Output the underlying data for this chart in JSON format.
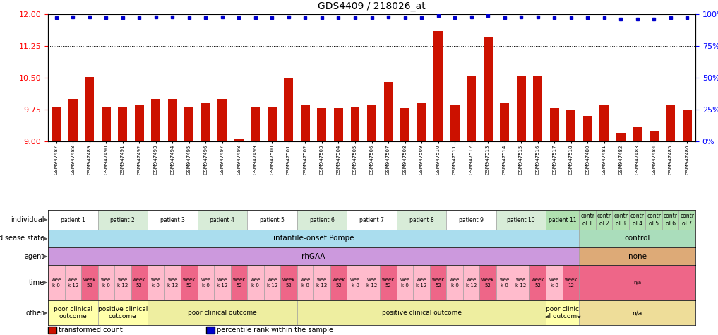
{
  "title": "GDS4409 / 218026_at",
  "sample_ids": [
    "GSM947487",
    "GSM947488",
    "GSM947489",
    "GSM947490",
    "GSM947491",
    "GSM947492",
    "GSM947493",
    "GSM947494",
    "GSM947495",
    "GSM947496",
    "GSM947497",
    "GSM947498",
    "GSM947499",
    "GSM947500",
    "GSM947501",
    "GSM947502",
    "GSM947503",
    "GSM947504",
    "GSM947505",
    "GSM947506",
    "GSM947507",
    "GSM947508",
    "GSM947509",
    "GSM947510",
    "GSM947511",
    "GSM947512",
    "GSM947513",
    "GSM947514",
    "GSM947515",
    "GSM947516",
    "GSM947517",
    "GSM947518",
    "GSM947480",
    "GSM947481",
    "GSM947482",
    "GSM947483",
    "GSM947484",
    "GSM947485",
    "GSM947486"
  ],
  "bar_values": [
    9.8,
    10.0,
    10.52,
    9.82,
    9.82,
    9.85,
    10.0,
    10.0,
    9.82,
    9.9,
    10.0,
    9.05,
    9.82,
    9.82,
    10.5,
    9.85,
    9.78,
    9.78,
    9.82,
    9.85,
    10.4,
    9.78,
    9.9,
    11.6,
    9.85,
    10.55,
    11.45,
    9.9,
    10.55,
    10.55,
    9.78,
    9.75,
    9.6,
    9.85,
    9.2,
    9.35,
    9.25,
    9.85,
    9.75
  ],
  "percentile_values": [
    97,
    98,
    98,
    97,
    97,
    97,
    98,
    98,
    97,
    97,
    98,
    97,
    97,
    97,
    98,
    97,
    97,
    97,
    97,
    97,
    98,
    97,
    97,
    99,
    97,
    98,
    99,
    97,
    98,
    98,
    97,
    97,
    97,
    97,
    96,
    96,
    96,
    97,
    97
  ],
  "ylim_left": [
    9.0,
    12.0
  ],
  "ylim_right": [
    0,
    100
  ],
  "yticks_left": [
    9.0,
    9.75,
    10.5,
    11.25,
    12.0
  ],
  "yticks_right": [
    0,
    25,
    50,
    75,
    100
  ],
  "bar_color": "#cc1100",
  "dot_color": "#0000cc",
  "individual_labels": [
    {
      "text": "patient 1",
      "start": 0,
      "end": 2,
      "color": "#ffffff"
    },
    {
      "text": "patient 2",
      "start": 3,
      "end": 5,
      "color": "#d8ecd8"
    },
    {
      "text": "patient 3",
      "start": 6,
      "end": 8,
      "color": "#ffffff"
    },
    {
      "text": "patient 4",
      "start": 9,
      "end": 11,
      "color": "#d8ecd8"
    },
    {
      "text": "patient 5",
      "start": 12,
      "end": 14,
      "color": "#ffffff"
    },
    {
      "text": "patient 6",
      "start": 15,
      "end": 17,
      "color": "#d8ecd8"
    },
    {
      "text": "patient 7",
      "start": 18,
      "end": 20,
      "color": "#ffffff"
    },
    {
      "text": "patient 8",
      "start": 21,
      "end": 23,
      "color": "#d8ecd8"
    },
    {
      "text": "patient 9",
      "start": 24,
      "end": 26,
      "color": "#ffffff"
    },
    {
      "text": "patient 10",
      "start": 27,
      "end": 29,
      "color": "#d8ecd8"
    },
    {
      "text": "patient 11",
      "start": 30,
      "end": 31,
      "color": "#b0e0b0"
    },
    {
      "text": "contr\nol 1",
      "start": 32,
      "end": 32,
      "color": "#b0e0b0"
    },
    {
      "text": "contr\nol 2",
      "start": 33,
      "end": 33,
      "color": "#b0e0b0"
    },
    {
      "text": "contr\nol 3",
      "start": 34,
      "end": 34,
      "color": "#b0e0b0"
    },
    {
      "text": "contr\nol 4",
      "start": 35,
      "end": 35,
      "color": "#b0e0b0"
    },
    {
      "text": "contr\nol 5",
      "start": 36,
      "end": 36,
      "color": "#b0e0b0"
    },
    {
      "text": "contr\nol 6",
      "start": 37,
      "end": 37,
      "color": "#b0e0b0"
    },
    {
      "text": "contr\nol 7",
      "start": 38,
      "end": 38,
      "color": "#b0e0b0"
    }
  ],
  "disease_state_groups": [
    {
      "text": "infantile-onset Pompe",
      "start": 0,
      "end": 31,
      "color": "#aaddee"
    },
    {
      "text": "control",
      "start": 32,
      "end": 38,
      "color": "#aaddbb"
    }
  ],
  "agent_groups": [
    {
      "text": "rhGAA",
      "start": 0,
      "end": 31,
      "color": "#cc99dd"
    },
    {
      "text": "none",
      "start": 32,
      "end": 38,
      "color": "#ddaa77"
    }
  ],
  "time_groups": [
    {
      "text": "wee\nk 0",
      "start": 0,
      "end": 0,
      "color": "#ffbbcc"
    },
    {
      "text": "wee\nk 12",
      "start": 1,
      "end": 1,
      "color": "#ffbbcc"
    },
    {
      "text": "week\n52",
      "start": 2,
      "end": 2,
      "color": "#ee6688"
    },
    {
      "text": "wee\nk 0",
      "start": 3,
      "end": 3,
      "color": "#ffbbcc"
    },
    {
      "text": "wee\nk 12",
      "start": 4,
      "end": 4,
      "color": "#ffbbcc"
    },
    {
      "text": "week\n52",
      "start": 5,
      "end": 5,
      "color": "#ee6688"
    },
    {
      "text": "wee\nk 0",
      "start": 6,
      "end": 6,
      "color": "#ffbbcc"
    },
    {
      "text": "wee\nk 12",
      "start": 7,
      "end": 7,
      "color": "#ffbbcc"
    },
    {
      "text": "week\n52",
      "start": 8,
      "end": 8,
      "color": "#ee6688"
    },
    {
      "text": "wee\nk 0",
      "start": 9,
      "end": 9,
      "color": "#ffbbcc"
    },
    {
      "text": "wee\nk 12",
      "start": 10,
      "end": 10,
      "color": "#ffbbcc"
    },
    {
      "text": "week\n52",
      "start": 11,
      "end": 11,
      "color": "#ee6688"
    },
    {
      "text": "wee\nk 0",
      "start": 12,
      "end": 12,
      "color": "#ffbbcc"
    },
    {
      "text": "wee\nk 12",
      "start": 13,
      "end": 13,
      "color": "#ffbbcc"
    },
    {
      "text": "week\n52",
      "start": 14,
      "end": 14,
      "color": "#ee6688"
    },
    {
      "text": "wee\nk 0",
      "start": 15,
      "end": 15,
      "color": "#ffbbcc"
    },
    {
      "text": "wee\nk 12",
      "start": 16,
      "end": 16,
      "color": "#ffbbcc"
    },
    {
      "text": "week\n52",
      "start": 17,
      "end": 17,
      "color": "#ee6688"
    },
    {
      "text": "wee\nk 0",
      "start": 18,
      "end": 18,
      "color": "#ffbbcc"
    },
    {
      "text": "wee\nk 12",
      "start": 19,
      "end": 19,
      "color": "#ffbbcc"
    },
    {
      "text": "week\n52",
      "start": 20,
      "end": 20,
      "color": "#ee6688"
    },
    {
      "text": "wee\nk 0",
      "start": 21,
      "end": 21,
      "color": "#ffbbcc"
    },
    {
      "text": "wee\nk 12",
      "start": 22,
      "end": 22,
      "color": "#ffbbcc"
    },
    {
      "text": "week\n52",
      "start": 23,
      "end": 23,
      "color": "#ee6688"
    },
    {
      "text": "wee\nk 0",
      "start": 24,
      "end": 24,
      "color": "#ffbbcc"
    },
    {
      "text": "wee\nk 12",
      "start": 25,
      "end": 25,
      "color": "#ffbbcc"
    },
    {
      "text": "week\n52",
      "start": 26,
      "end": 26,
      "color": "#ee6688"
    },
    {
      "text": "wee\nk 0",
      "start": 27,
      "end": 27,
      "color": "#ffbbcc"
    },
    {
      "text": "wee\nk 12",
      "start": 28,
      "end": 28,
      "color": "#ffbbcc"
    },
    {
      "text": "week\n52",
      "start": 29,
      "end": 29,
      "color": "#ee6688"
    },
    {
      "text": "wee\nk 0",
      "start": 30,
      "end": 30,
      "color": "#ffbbcc"
    },
    {
      "text": "week\n12",
      "start": 31,
      "end": 31,
      "color": "#ee6688"
    },
    {
      "text": "n/a",
      "start": 32,
      "end": 38,
      "color": "#ee6688"
    }
  ],
  "other_groups": [
    {
      "text": "poor clinical\noutcome",
      "start": 0,
      "end": 2,
      "color": "#ffffaa"
    },
    {
      "text": "positive clinical\noutcome",
      "start": 3,
      "end": 5,
      "color": "#ffffaa"
    },
    {
      "text": "poor clinical outcome",
      "start": 6,
      "end": 14,
      "color": "#eeeea0"
    },
    {
      "text": "positive clinical outcome",
      "start": 15,
      "end": 29,
      "color": "#eeeea0"
    },
    {
      "text": "poor clinic\nal outcome",
      "start": 30,
      "end": 31,
      "color": "#ffffaa"
    },
    {
      "text": "n/a",
      "start": 32,
      "end": 38,
      "color": "#eedd99"
    }
  ]
}
